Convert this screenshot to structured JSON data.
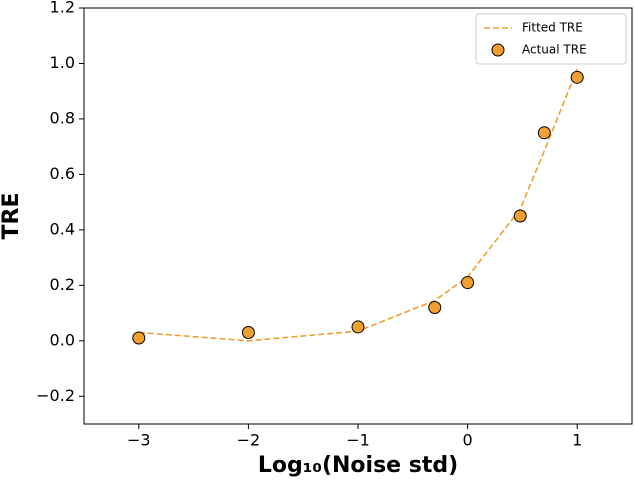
{
  "chart_data": {
    "type": "line",
    "xlabel": "Log₁₀(Noise std)",
    "ylabel": "TRE",
    "xlim": [
      -3.5,
      1.5
    ],
    "ylim": [
      -0.3,
      1.2
    ],
    "xticks": [
      {
        "value": -3,
        "label": "−3"
      },
      {
        "value": -2,
        "label": "−2"
      },
      {
        "value": -1,
        "label": "−1"
      },
      0,
      1
    ],
    "yticks": [
      {
        "value": -0.2,
        "label": "−0.2"
      },
      {
        "value": 0,
        "label": "0.0"
      },
      0.2,
      0.4,
      0.6,
      0.8,
      {
        "value": 1,
        "label": "1.0"
      },
      1.2
    ],
    "grid": false,
    "legend": "upper right",
    "series": [
      {
        "name": "Fitted TRE",
        "type": "line",
        "dashed": true,
        "color": "#f0a030",
        "x": [
          -3,
          -2,
          -1,
          -0.3,
          0,
          0.48,
          0.7,
          1
        ],
        "values": [
          0.03,
          0.0,
          0.035,
          0.145,
          0.23,
          0.475,
          0.685,
          0.98
        ]
      },
      {
        "name": "Actual TRE",
        "type": "scatter",
        "color": "#f0a030",
        "x": [
          -3,
          -2,
          -1,
          -0.3,
          0,
          0.48,
          0.7,
          1
        ],
        "values": [
          0.01,
          0.03,
          0.05,
          0.12,
          0.21,
          0.45,
          0.75,
          0.95
        ]
      }
    ]
  }
}
